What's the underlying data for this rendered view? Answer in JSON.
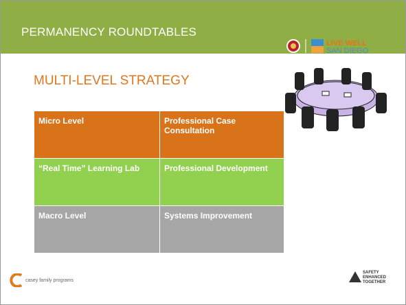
{
  "header": {
    "title": "PERMANENCY ROUNDTABLES",
    "logo_line1": "LIVE WELL",
    "logo_line2": "SAN DIEGO"
  },
  "subtitle": "MULTI-LEVEL STRATEGY",
  "table": {
    "rows": [
      [
        "Micro Level",
        "Professional Case Consultation"
      ],
      [
        "“Real Time” Learning Lab",
        "Professional Development"
      ],
      [
        "Macro Level",
        "Systems Improvement"
      ]
    ]
  },
  "footer": {
    "left_logo": "casey family programs",
    "right_logo": [
      "SAFETY",
      "ENHANCED",
      "TOGETHER"
    ]
  }
}
